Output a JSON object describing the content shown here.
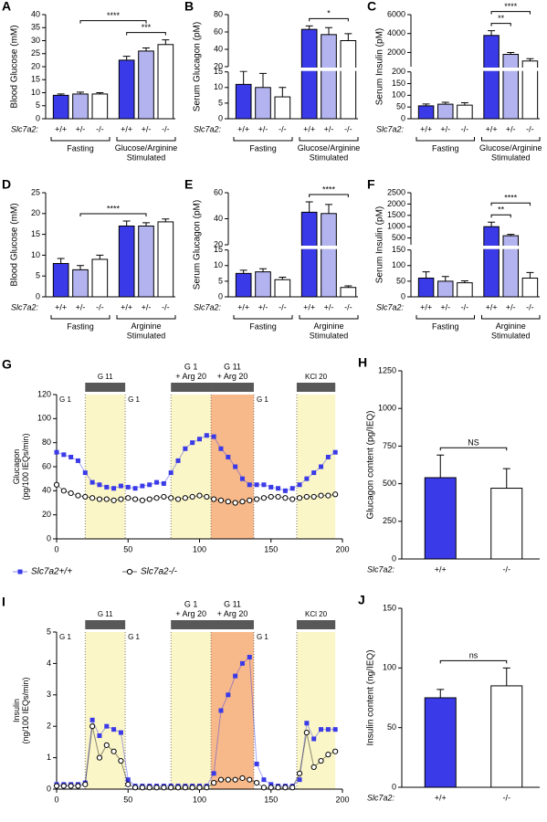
{
  "chart_data": [
    {
      "type": "bar",
      "panel": "A",
      "ylabel": "Blood Glucose (mM)",
      "genotype_label": "Slc7a2:",
      "categories": [
        "+/+",
        "+/-",
        "-/-",
        "+/+",
        "+/-",
        "-/-"
      ],
      "values": [
        9,
        9.5,
        9.5,
        22.5,
        26,
        28.5
      ],
      "errors": [
        0.5,
        0.7,
        0.5,
        1.5,
        1.2,
        1.8
      ],
      "colors": [
        "#3a3ae8",
        "#b3b3ef",
        "#ffffff",
        "#3a3ae8",
        "#b3b3ef",
        "#ffffff"
      ],
      "ylim": [
        0,
        40
      ],
      "yticks": [
        0,
        5,
        10,
        15,
        20,
        25,
        30,
        35,
        40
      ],
      "groups": [
        {
          "label": "Fasting",
          "span": [
            0,
            2
          ]
        },
        {
          "label": "Glucose/Arginine\nStimulated",
          "span": [
            3,
            5
          ]
        }
      ],
      "significance": [
        {
          "label": "****",
          "between": [
            1,
            4
          ]
        },
        {
          "label": "***",
          "between": [
            3,
            5
          ]
        }
      ]
    },
    {
      "type": "bar",
      "panel": "B",
      "ylabel": "Serum Glucagon (pM)",
      "genotype_label": "Slc7a2:",
      "categories": [
        "+/+",
        "+/-",
        "-/-",
        "+/+",
        "+/-",
        "-/-"
      ],
      "values": [
        11,
        10,
        7,
        63,
        57,
        50
      ],
      "errors": [
        4.5,
        4.5,
        3,
        4,
        8,
        8
      ],
      "colors": [
        "#3a3ae8",
        "#b3b3ef",
        "#ffffff",
        "#3a3ae8",
        "#b3b3ef",
        "#ffffff"
      ],
      "ylim": [
        0,
        80
      ],
      "ybreak": [
        15,
        20
      ],
      "yticks": [
        0,
        5,
        10,
        15,
        20,
        40,
        60,
        80
      ],
      "groups": [
        {
          "label": "Fasting",
          "span": [
            0,
            2
          ]
        },
        {
          "label": "Glucose/Arginine\nStimulated",
          "span": [
            3,
            5
          ]
        }
      ],
      "significance": [
        {
          "label": "*",
          "between": [
            3,
            5
          ]
        }
      ]
    },
    {
      "type": "bar",
      "panel": "C",
      "ylabel": "Serum Insulin (pM)",
      "genotype_label": "Slc7a2:",
      "categories": [
        "+/+",
        "+/-",
        "-/-",
        "+/+",
        "+/-",
        "-/-"
      ],
      "values": [
        55,
        62,
        58,
        3800,
        1800,
        1100
      ],
      "errors": [
        8,
        8,
        10,
        500,
        200,
        250
      ],
      "colors": [
        "#3a3ae8",
        "#b3b3ef",
        "#ffffff",
        "#3a3ae8",
        "#b3b3ef",
        "#ffffff"
      ],
      "ylim": [
        0,
        6000
      ],
      "ybreak": [
        200,
        500
      ],
      "yticks": [
        0,
        50,
        100,
        150,
        200,
        2000,
        4000,
        6000
      ],
      "groups": [
        {
          "label": "Fasting",
          "span": [
            0,
            2
          ]
        },
        {
          "label": "Glucose/Arginine\nStimulated",
          "span": [
            3,
            5
          ]
        }
      ],
      "significance": [
        {
          "label": "****",
          "between": [
            3,
            5
          ]
        },
        {
          "label": "**",
          "between": [
            3,
            4
          ]
        }
      ]
    },
    {
      "type": "bar",
      "panel": "D",
      "ylabel": "Blood Glucose (mM)",
      "genotype_label": "Slc7a2:",
      "categories": [
        "+/+",
        "+/-",
        "-/-",
        "+/+",
        "+/-",
        "-/-"
      ],
      "values": [
        8,
        6.5,
        9,
        17,
        17,
        18
      ],
      "errors": [
        1.2,
        1,
        1,
        1.2,
        0.8,
        0.7
      ],
      "colors": [
        "#3a3ae8",
        "#b3b3ef",
        "#ffffff",
        "#3a3ae8",
        "#b3b3ef",
        "#ffffff"
      ],
      "ylim": [
        0,
        25
      ],
      "yticks": [
        0,
        5,
        10,
        15,
        20,
        25
      ],
      "groups": [
        {
          "label": "Fasting",
          "span": [
            0,
            2
          ]
        },
        {
          "label": "Arginine\nStimulated",
          "span": [
            3,
            5
          ]
        }
      ],
      "significance": [
        {
          "label": "****",
          "between": [
            1,
            4
          ]
        }
      ]
    },
    {
      "type": "bar",
      "panel": "E",
      "ylabel": "Serum Glucagon (pM)",
      "genotype_label": "Slc7a2:",
      "categories": [
        "+/+",
        "+/-",
        "-/-",
        "+/+",
        "+/-",
        "-/-"
      ],
      "values": [
        7.5,
        8,
        5.5,
        45,
        44,
        3
      ],
      "errors": [
        1,
        1,
        0.8,
        8,
        7,
        0.5
      ],
      "colors": [
        "#3a3ae8",
        "#b3b3ef",
        "#ffffff",
        "#3a3ae8",
        "#b3b3ef",
        "#ffffff"
      ],
      "ylim": [
        0,
        60
      ],
      "ybreak": [
        15,
        20
      ],
      "yticks": [
        0,
        5,
        10,
        15,
        20,
        40,
        60
      ],
      "groups": [
        {
          "label": "Fasting",
          "span": [
            0,
            2
          ]
        },
        {
          "label": "Arginine\nStimulated",
          "span": [
            3,
            5
          ]
        }
      ],
      "significance": [
        {
          "label": "****",
          "between": [
            3,
            5
          ]
        }
      ]
    },
    {
      "type": "bar",
      "panel": "F",
      "ylabel": "Serum Insulin (pM)",
      "genotype_label": "Slc7a2:",
      "categories": [
        "+/+",
        "+/-",
        "-/-",
        "+/+",
        "+/-",
        "-/-"
      ],
      "values": [
        60,
        50,
        45,
        1000,
        600,
        60
      ],
      "errors": [
        20,
        15,
        6,
        200,
        60,
        18
      ],
      "colors": [
        "#3a3ae8",
        "#b3b3ef",
        "#ffffff",
        "#3a3ae8",
        "#b3b3ef",
        "#ffffff"
      ],
      "ylim": [
        0,
        2500
      ],
      "ybreak": [
        150,
        200
      ],
      "yticks": [
        0,
        50,
        100,
        150,
        500,
        1000,
        1500,
        2000,
        2500
      ],
      "groups": [
        {
          "label": "Fasting",
          "span": [
            0,
            2
          ]
        },
        {
          "label": "Arginine\nStimulated",
          "span": [
            3,
            5
          ]
        }
      ],
      "significance": [
        {
          "label": "****",
          "between": [
            3,
            5
          ]
        },
        {
          "label": "**",
          "between": [
            3,
            4
          ]
        }
      ]
    },
    {
      "type": "line",
      "panel": "G",
      "ylabel": "Glucagon\n(pg/100 IEQs/min)",
      "legend": "bottom",
      "x": [
        0,
        5,
        10,
        15,
        20,
        25,
        30,
        35,
        40,
        45,
        50,
        55,
        60,
        65,
        70,
        75,
        80,
        85,
        90,
        95,
        100,
        105,
        110,
        115,
        120,
        125,
        130,
        135,
        140,
        145,
        150,
        155,
        160,
        165,
        170,
        175,
        180,
        185,
        190,
        195
      ],
      "xlim": [
        0,
        200
      ],
      "xticks": [
        0,
        50,
        100,
        150,
        200
      ],
      "ylim": [
        0,
        120
      ],
      "yticks": [
        0,
        20,
        40,
        60,
        80,
        100,
        120
      ],
      "phases": [
        {
          "label": "G 1",
          "start": 0,
          "end": 20
        },
        {
          "label": "G 11",
          "start": 20,
          "end": 48,
          "fill": "#fbf6c8"
        },
        {
          "label": "G 1",
          "start": 48,
          "end": 80
        },
        {
          "label": "G 1\n+ Arg 20",
          "start": 80,
          "end": 108,
          "fill": "#fbf6c8"
        },
        {
          "label": "G 11\n+ Arg 20",
          "start": 108,
          "end": 138,
          "fill": "#f8b98a"
        },
        {
          "label": "G 1",
          "start": 138,
          "end": 168
        },
        {
          "label": "KCl 20",
          "start": 168,
          "end": 195,
          "fill": "#fbf6c8"
        }
      ],
      "series": [
        {
          "name": "Slc7a2+/+",
          "color": "#3a3ae8",
          "marker": "square",
          "values": [
            72,
            70,
            68,
            65,
            55,
            47,
            45,
            43,
            42,
            44,
            43,
            42,
            44,
            45,
            47,
            46,
            55,
            65,
            75,
            80,
            83,
            86,
            85,
            75,
            68,
            60,
            50,
            45,
            45,
            45,
            43,
            42,
            40,
            42,
            45,
            50,
            55,
            60,
            68,
            72
          ]
        },
        {
          "name": "Slc7a2-/-",
          "color": "#000000",
          "marker": "circle",
          "values": [
            45,
            40,
            38,
            36,
            35,
            34,
            33,
            33,
            32,
            33,
            34,
            33,
            32,
            33,
            34,
            35,
            34,
            33,
            34,
            35,
            36,
            35,
            33,
            32,
            31,
            30,
            31,
            32,
            33,
            34,
            35,
            35,
            34,
            33,
            34,
            35,
            35,
            36,
            36,
            37
          ]
        }
      ]
    },
    {
      "type": "bar",
      "panel": "H",
      "ylabel": "Glucagon content (pg/IEQ)",
      "genotype_label": "Slc7a2:",
      "categories": [
        "+/+",
        "-/-"
      ],
      "values": [
        540,
        470
      ],
      "errors": [
        150,
        130
      ],
      "colors": [
        "#3a3ae8",
        "#ffffff"
      ],
      "ylim": [
        0,
        1250
      ],
      "yticks": [
        0,
        250,
        500,
        750,
        1000,
        1250
      ],
      "significance": [
        {
          "label": "NS",
          "between": [
            0,
            1
          ]
        }
      ]
    },
    {
      "type": "line",
      "panel": "I",
      "ylabel": "Insulin\n(ng/100 IEQs/min)",
      "x": [
        0,
        5,
        10,
        15,
        20,
        25,
        30,
        35,
        40,
        45,
        50,
        55,
        60,
        65,
        70,
        75,
        80,
        85,
        90,
        95,
        100,
        105,
        110,
        115,
        120,
        125,
        130,
        135,
        140,
        145,
        150,
        155,
        160,
        165,
        170,
        175,
        180,
        185,
        190,
        195
      ],
      "xlim": [
        0,
        200
      ],
      "xticks": [
        0,
        50,
        100,
        150,
        200
      ],
      "ylim": [
        0,
        5
      ],
      "yticks": [
        0,
        1,
        2,
        3,
        4,
        5
      ],
      "phases": [
        {
          "label": "G 1",
          "start": 0,
          "end": 20
        },
        {
          "label": "G 11",
          "start": 20,
          "end": 48,
          "fill": "#fbf6c8"
        },
        {
          "label": "G 1",
          "start": 48,
          "end": 80
        },
        {
          "label": "G 1\n+ Arg 20",
          "start": 80,
          "end": 108,
          "fill": "#fbf6c8"
        },
        {
          "label": "G 11\n+ Arg 20",
          "start": 108,
          "end": 138,
          "fill": "#f8b98a"
        },
        {
          "label": "G 1",
          "start": 138,
          "end": 168
        },
        {
          "label": "KCl 20",
          "start": 168,
          "end": 195,
          "fill": "#fbf6c8"
        }
      ],
      "series": [
        {
          "name": "Slc7a2+/+",
          "color": "#3a3ae8",
          "marker": "square",
          "values": [
            0.15,
            0.15,
            0.15,
            0.15,
            0.2,
            2.2,
            1.7,
            2.0,
            1.9,
            1.8,
            0.3,
            0.1,
            0.1,
            0.1,
            0.1,
            0.1,
            0.1,
            0.1,
            0.1,
            0.1,
            0.1,
            0.1,
            0.5,
            2.5,
            3.0,
            3.6,
            4.0,
            4.2,
            0.8,
            0.3,
            0.15,
            0.1,
            0.1,
            0.1,
            0.3,
            2.1,
            1.6,
            1.9,
            1.9,
            1.9
          ]
        },
        {
          "name": "Slc7a2-/-",
          "color": "#000000",
          "marker": "circle",
          "values": [
            0.1,
            0.1,
            0.1,
            0.1,
            0.15,
            2.0,
            1.0,
            1.4,
            1.2,
            0.9,
            0.15,
            0.05,
            0.05,
            0.05,
            0.05,
            0.05,
            0.05,
            0.05,
            0.05,
            0.05,
            0.05,
            0.05,
            0.2,
            0.3,
            0.3,
            0.3,
            0.35,
            0.3,
            0.2,
            0.05,
            0.05,
            0.05,
            0.05,
            0.05,
            0.5,
            1.8,
            0.7,
            0.9,
            1.1,
            1.2
          ]
        }
      ]
    },
    {
      "type": "bar",
      "panel": "J",
      "ylabel": "Insulin content (ng/IEQ)",
      "genotype_label": "Slc7a2:",
      "categories": [
        "+/+",
        "-/-"
      ],
      "values": [
        75,
        85
      ],
      "errors": [
        7,
        15
      ],
      "colors": [
        "#3a3ae8",
        "#ffffff"
      ],
      "ylim": [
        0,
        150
      ],
      "yticks": [
        0,
        50,
        100,
        150
      ],
      "significance": [
        {
          "label": "ns",
          "between": [
            0,
            1
          ]
        }
      ]
    }
  ]
}
